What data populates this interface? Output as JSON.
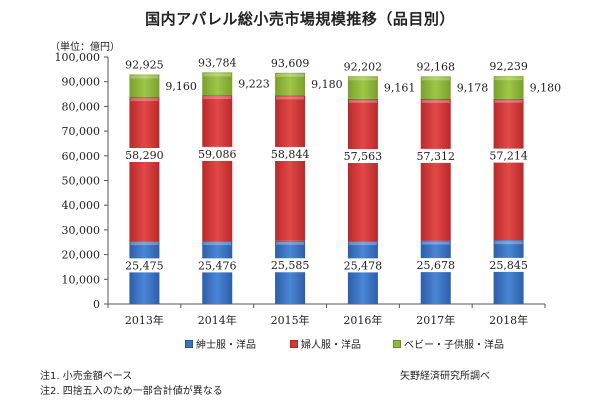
{
  "title": "国内アパレル総小売市場規模推移（品目別）",
  "unit_label": "（単位：億円）",
  "colors": {
    "mens": "#3a73c4",
    "womens": "#d63a3a",
    "kids": "#8fb83a"
  },
  "chart_data": {
    "type": "bar",
    "stacked": true,
    "title": "国内アパレル総小売市場規模推移（品目別）",
    "ylabel": "（単位：億円）",
    "xlabel": "",
    "ylim": [
      0,
      100000
    ],
    "yticks": [
      0,
      10000,
      20000,
      30000,
      40000,
      50000,
      60000,
      70000,
      80000,
      90000,
      100000
    ],
    "ytick_labels": [
      "0",
      "10,000",
      "20,000",
      "30,000",
      "40,000",
      "50,000",
      "60,000",
      "70,000",
      "80,000",
      "90,000",
      "100,000"
    ],
    "categories": [
      "2013年",
      "2014年",
      "2015年",
      "2016年",
      "2017年",
      "2018年"
    ],
    "series": [
      {
        "name": "紳士服・洋品",
        "key": "mens",
        "values": [
          25475,
          25476,
          25585,
          25478,
          25678,
          25845
        ],
        "labels": [
          "25,475",
          "25,476",
          "25,585",
          "25,478",
          "25,678",
          "25,845"
        ]
      },
      {
        "name": "婦人服・洋品",
        "key": "womens",
        "values": [
          58290,
          59086,
          58844,
          57563,
          57312,
          57214
        ],
        "labels": [
          "58,290",
          "59,086",
          "58,844",
          "57,563",
          "57,312",
          "57,214"
        ]
      },
      {
        "name": "ベビー・子供服・洋品",
        "key": "kids",
        "values": [
          9160,
          9223,
          9180,
          9161,
          9178,
          9180
        ],
        "labels": [
          "9,160",
          "9,223",
          "9,180",
          "9,161",
          "9,178",
          "9,180"
        ]
      }
    ],
    "totals": [
      92925,
      93784,
      93609,
      92202,
      92168,
      92239
    ],
    "total_labels": [
      "92,925",
      "93,784",
      "93,609",
      "92,202",
      "92,168",
      "92,239"
    ],
    "legend_position": "bottom",
    "grid": false
  },
  "legend": [
    {
      "label": "紳士服・洋品",
      "key": "mens"
    },
    {
      "label": "婦人服・洋品",
      "key": "womens"
    },
    {
      "label": "ベビー・子供服・洋品",
      "key": "kids"
    }
  ],
  "notes": [
    "注1. 小売金額ベース",
    "注2. 四捨五入のため一部合計値が異なる"
  ],
  "source": "矢野経済研究所調べ"
}
